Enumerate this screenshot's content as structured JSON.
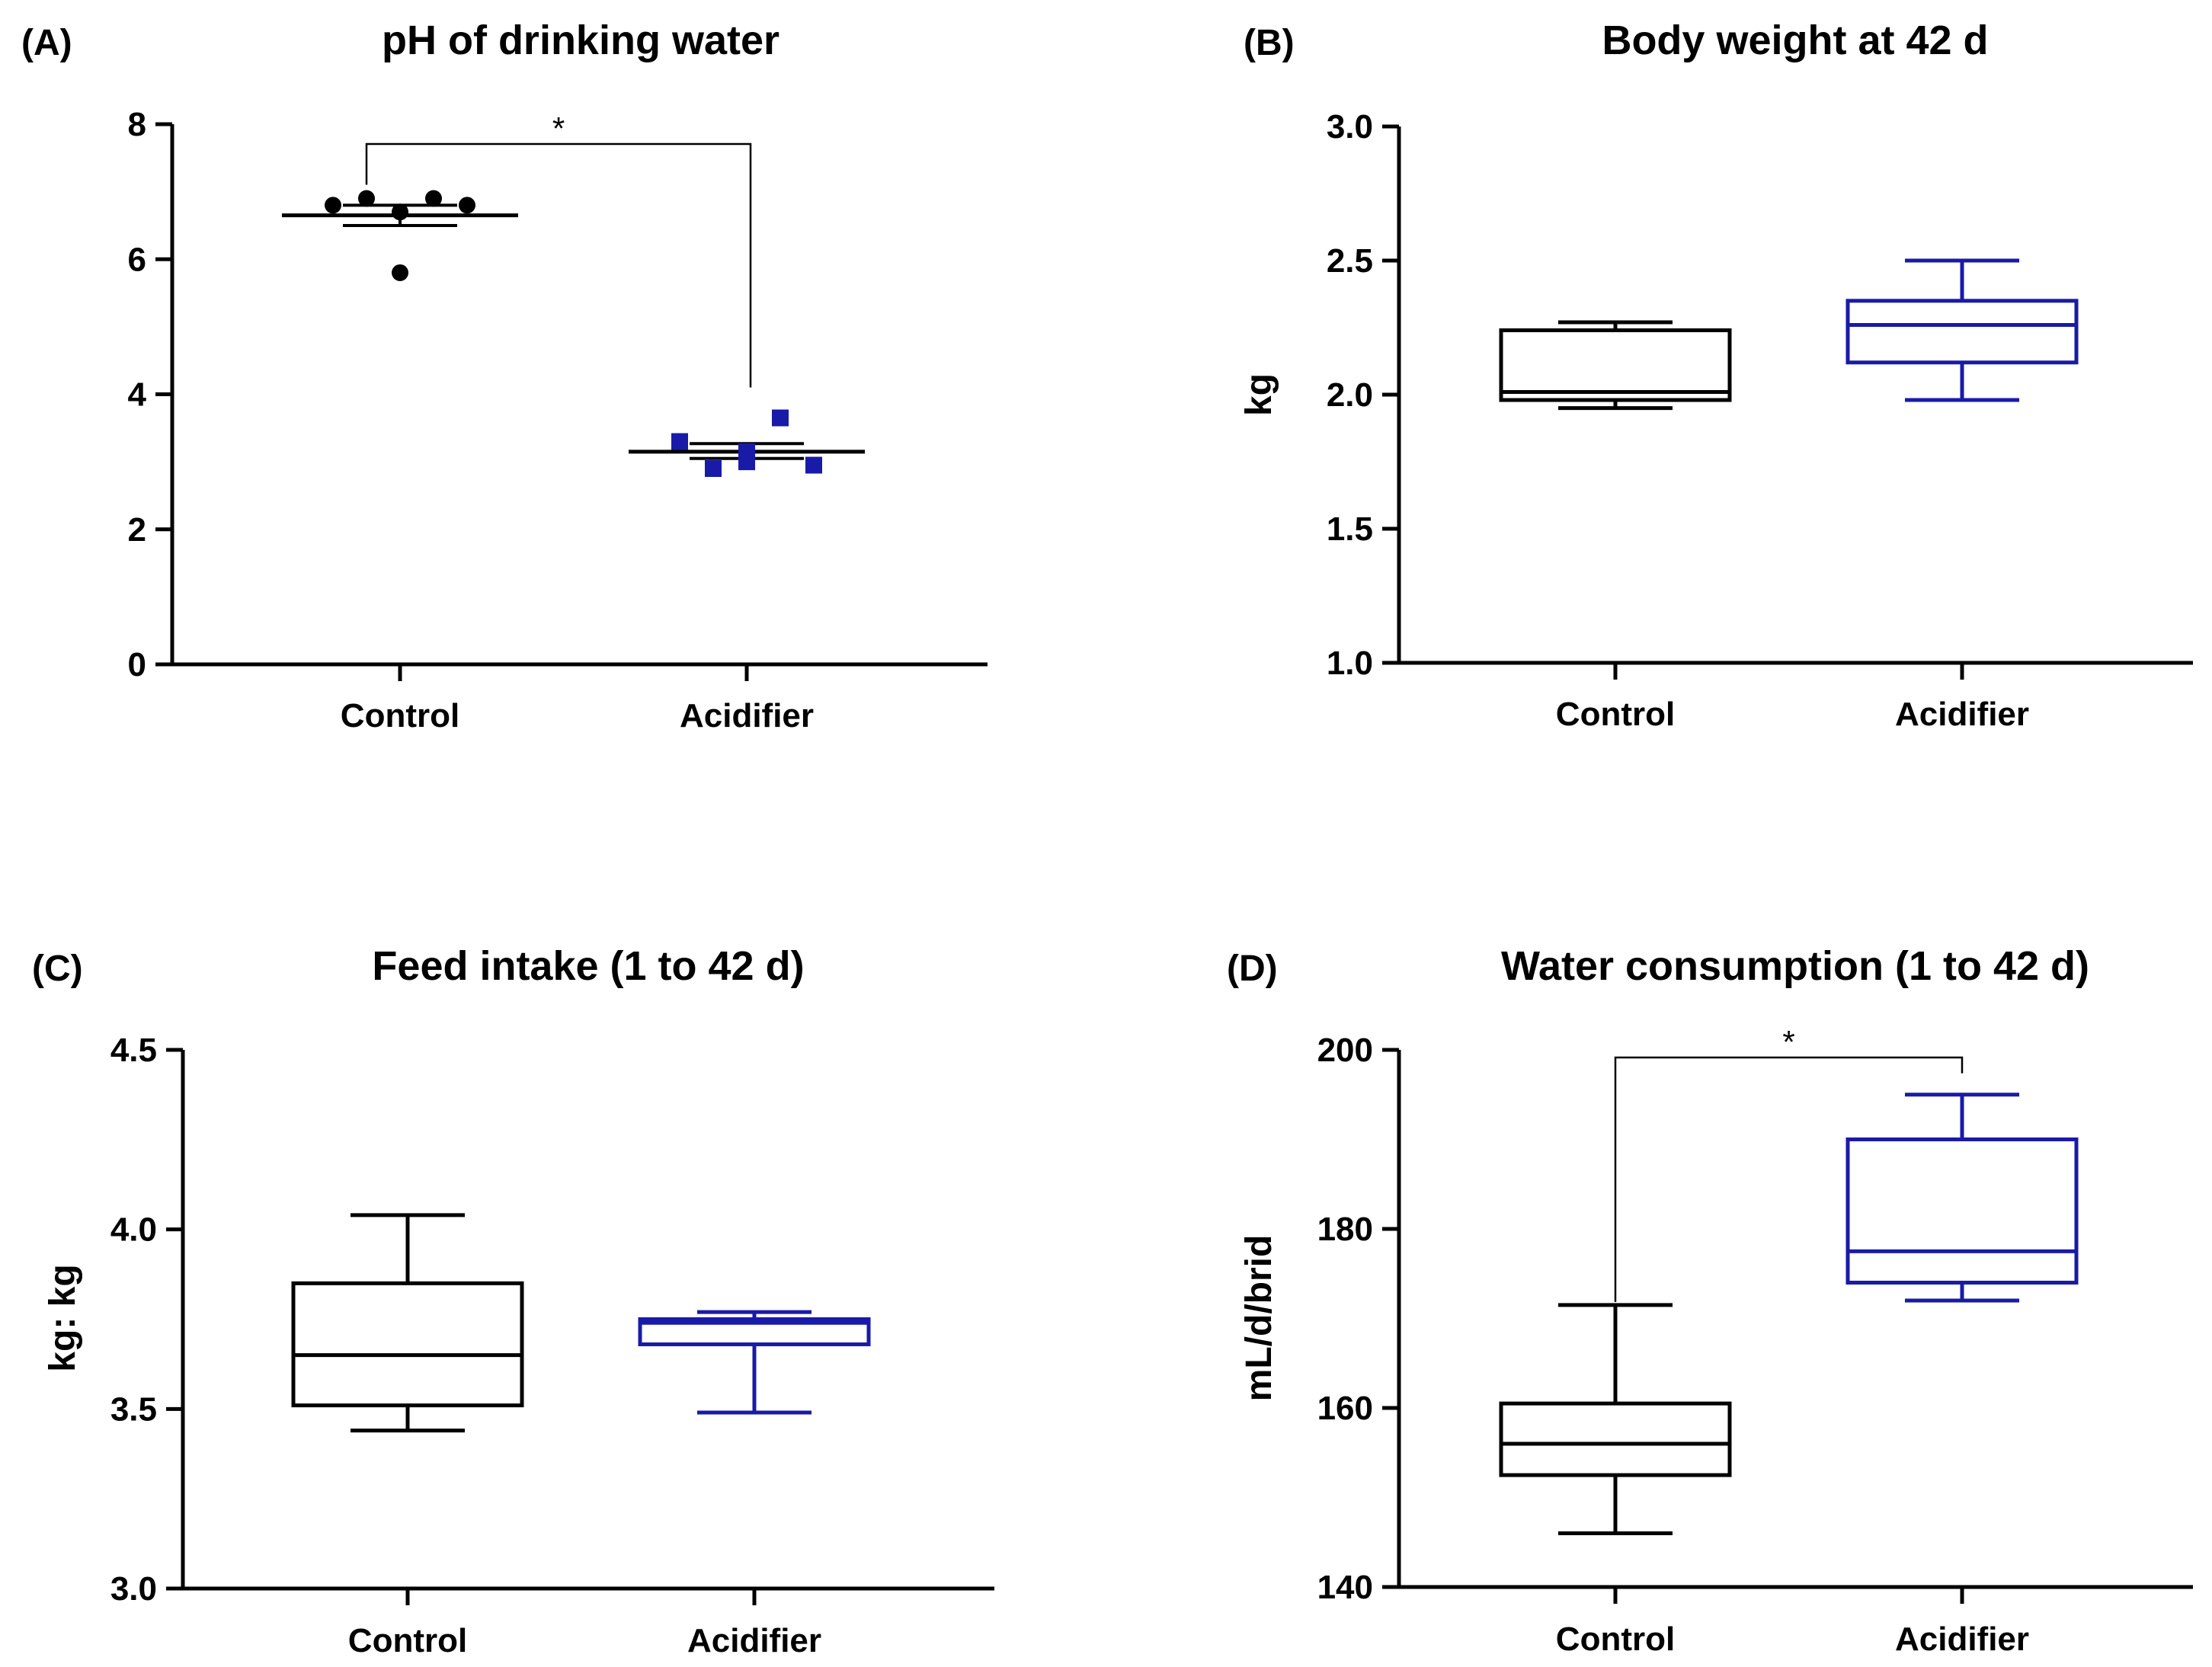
{
  "colors": {
    "control": "#000000",
    "acidifier": "#1a1aa8"
  },
  "chart_data": [
    {
      "type": "scatter",
      "panel_label": "(A)",
      "title": "pH of drinking water",
      "xlabel": "",
      "ylabel": "",
      "categories": [
        "Control",
        "Acidifier"
      ],
      "ylim": [
        0,
        8
      ],
      "yticks": [
        "0",
        "2",
        "4",
        "6",
        "8"
      ],
      "series": [
        {
          "name": "Control",
          "marker": "circle",
          "points": [
            6.8,
            6.9,
            6.7,
            6.9,
            6.8,
            5.8
          ],
          "mean": 6.65,
          "sem_low": 6.5,
          "sem_high": 6.8
        },
        {
          "name": "Acidifier",
          "marker": "square",
          "points": [
            3.3,
            2.9,
            3.15,
            3.65,
            2.95,
            3.0
          ],
          "mean": 3.15,
          "sem_low": 3.05,
          "sem_high": 3.27
        }
      ],
      "significance": {
        "label": "*",
        "between": [
          "Control",
          "Acidifier"
        ]
      }
    },
    {
      "type": "box",
      "panel_label": "(B)",
      "title": "Body weight at 42 d",
      "xlabel": "",
      "ylabel": "kg",
      "categories": [
        "Control",
        "Acidifier"
      ],
      "ylim": [
        1.0,
        3.0
      ],
      "yticks": [
        "1.0",
        "1.5",
        "2.0",
        "2.5",
        "3.0"
      ],
      "series": [
        {
          "name": "Control",
          "min": 1.95,
          "q1": 1.98,
          "median": 2.01,
          "q3": 2.24,
          "max": 2.27
        },
        {
          "name": "Acidifier",
          "min": 1.98,
          "q1": 2.12,
          "median": 2.26,
          "q3": 2.35,
          "max": 2.5
        }
      ]
    },
    {
      "type": "box",
      "panel_label": "(C)",
      "title": "Feed intake (1 to 42 d)",
      "xlabel": "",
      "ylabel": "kg: kg",
      "categories": [
        "Control",
        "Acidifier"
      ],
      "ylim": [
        3.0,
        4.5
      ],
      "yticks": [
        "3.0",
        "3.5",
        "4.0",
        "4.5"
      ],
      "series": [
        {
          "name": "Control",
          "min": 3.44,
          "q1": 3.51,
          "median": 3.65,
          "q3": 3.85,
          "max": 4.04
        },
        {
          "name": "Acidifier",
          "min": 3.49,
          "q1": 3.68,
          "median": 3.74,
          "q3": 3.75,
          "max": 3.77
        }
      ]
    },
    {
      "type": "box",
      "panel_label": "(D)",
      "title": "Water consumption (1 to 42 d)",
      "xlabel": "",
      "ylabel": "mL/d/brid",
      "categories": [
        "Control",
        "Acidifier"
      ],
      "ylim": [
        140,
        200
      ],
      "yticks": [
        "140",
        "160",
        "180",
        "200"
      ],
      "series": [
        {
          "name": "Control",
          "min": 146,
          "q1": 152.5,
          "median": 156,
          "q3": 160.5,
          "max": 171.5
        },
        {
          "name": "Acidifier",
          "min": 172,
          "q1": 174,
          "median": 177.5,
          "q3": 190,
          "max": 195
        }
      ],
      "significance": {
        "label": "*",
        "between": [
          "Control",
          "Acidifier"
        ]
      }
    }
  ]
}
